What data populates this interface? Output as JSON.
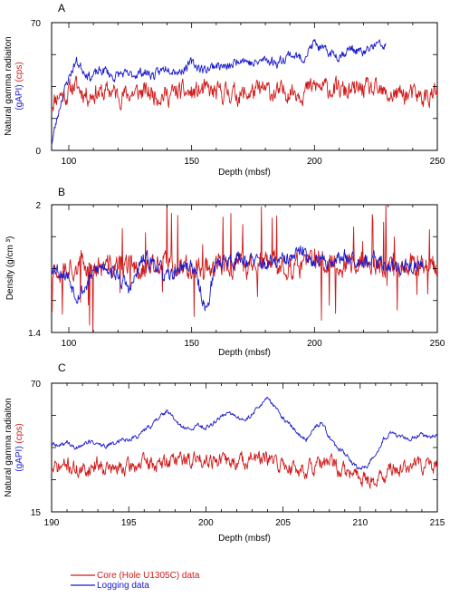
{
  "chart_data": [
    {
      "type": "line",
      "panel": "A",
      "xlabel": "Depth (mbsf)",
      "ylabel_parts": [
        {
          "text": "Natural gamma radiaiton",
          "color": "#000000"
        },
        {
          "text": "(gAPI)",
          "color": "#1a1acc"
        },
        {
          "text": "(cps)",
          "color": "#d01a1a"
        }
      ],
      "xlim": [
        93,
        250
      ],
      "ylim": [
        0,
        70
      ],
      "xticks": [
        "100",
        "150",
        "200",
        "250"
      ],
      "xtick_values": [
        100,
        150,
        200,
        250
      ],
      "yticks": [
        "0",
        "70"
      ],
      "ytick_values": [
        0,
        70
      ],
      "grid": false,
      "series": [
        {
          "color": "#d01a1a",
          "x": [
            93,
            96,
            99,
            102,
            105,
            108,
            111,
            114,
            117,
            120,
            125,
            130,
            135,
            140,
            145,
            150,
            155,
            160,
            165,
            170,
            175,
            180,
            185,
            190,
            195,
            200,
            205,
            210,
            215,
            220,
            225,
            230,
            235,
            240,
            245,
            250
          ],
          "y": [
            26,
            31,
            30,
            36,
            33,
            30,
            32,
            31,
            33,
            30,
            31,
            32,
            31,
            30,
            32,
            31,
            33,
            31,
            32,
            30,
            32,
            33,
            31,
            33,
            32,
            35,
            34,
            33,
            32,
            34,
            32,
            30,
            31,
            30,
            29,
            31
          ],
          "noise": 4.5,
          "seed": 11
        },
        {
          "color": "#1a1acc",
          "x": [
            93,
            95,
            97,
            100,
            103,
            106,
            109,
            112,
            115,
            118,
            121,
            125,
            130,
            135,
            140,
            145,
            150,
            155,
            160,
            165,
            170,
            175,
            180,
            185,
            190,
            195,
            200,
            203,
            205,
            210,
            215,
            220,
            225,
            229
          ],
          "y": [
            4,
            16,
            28,
            40,
            49,
            44,
            40,
            43,
            44,
            40,
            42,
            41,
            43,
            41,
            46,
            43,
            48,
            44,
            47,
            45,
            51,
            47,
            50,
            48,
            53,
            50,
            59,
            55,
            54,
            52,
            56,
            53,
            58,
            57
          ],
          "noise": 2.2,
          "seed": 23
        }
      ]
    },
    {
      "type": "line",
      "panel": "B",
      "xlabel": "Depth (mbsf)",
      "ylabel_parts": [
        {
          "text": "Density (g/cm ³)",
          "color": "#000000"
        }
      ],
      "xlim": [
        93,
        250
      ],
      "ylim": [
        1.4,
        2
      ],
      "xticks": [
        "100",
        "150",
        "200",
        "250"
      ],
      "xtick_values": [
        100,
        150,
        200,
        250
      ],
      "yticks": [
        "1.4",
        "2"
      ],
      "ytick_values": [
        1.4,
        2
      ],
      "grid": false,
      "series": [
        {
          "color": "#d01a1a",
          "x": [
            93,
            100,
            110,
            120,
            130,
            140,
            150,
            160,
            170,
            180,
            190,
            200,
            210,
            220,
            230,
            240,
            250
          ],
          "y": [
            1.7,
            1.72,
            1.7,
            1.71,
            1.7,
            1.72,
            1.71,
            1.72,
            1.71,
            1.72,
            1.71,
            1.73,
            1.72,
            1.72,
            1.71,
            1.72,
            1.72
          ],
          "noise": 0.045,
          "spikes": 0.15,
          "seed": 37
        },
        {
          "color": "#1a1acc",
          "x": [
            93,
            100,
            103,
            106,
            110,
            115,
            120,
            125,
            130,
            135,
            140,
            145,
            150,
            153,
            156,
            160,
            170,
            180,
            190,
            195,
            200,
            205,
            210,
            215,
            220,
            225,
            230,
            235,
            240,
            244
          ],
          "y": [
            1.72,
            1.66,
            1.58,
            1.6,
            1.68,
            1.72,
            1.66,
            1.6,
            1.74,
            1.73,
            1.65,
            1.7,
            1.72,
            1.62,
            1.5,
            1.73,
            1.75,
            1.72,
            1.74,
            1.78,
            1.74,
            1.73,
            1.75,
            1.76,
            1.74,
            1.73,
            1.72,
            1.71,
            1.71,
            1.7
          ],
          "noise": 0.03,
          "seed": 53
        }
      ]
    },
    {
      "type": "line",
      "panel": "C",
      "xlabel": "Depth (mbsf)",
      "ylabel_parts": [
        {
          "text": "Natural gamma radiaiton",
          "color": "#000000"
        },
        {
          "text": "(gAPI)",
          "color": "#1a1acc"
        },
        {
          "text": "(cps)",
          "color": "#d01a1a"
        }
      ],
      "xlim": [
        190,
        215
      ],
      "ylim": [
        15,
        70
      ],
      "xticks": [
        "190",
        "195",
        "200",
        "205",
        "210",
        "215"
      ],
      "xtick_values": [
        190,
        195,
        200,
        205,
        210,
        215
      ],
      "yticks": [
        "15",
        "70"
      ],
      "ytick_values": [
        15,
        70
      ],
      "grid": false,
      "series": [
        {
          "color": "#d01a1a",
          "x": [
            190,
            191,
            192,
            193,
            194,
            195,
            196,
            197,
            198,
            199,
            200,
            201,
            202,
            203,
            204,
            205,
            206,
            207,
            208,
            209,
            210,
            211,
            212,
            213,
            214,
            215
          ],
          "y": [
            33,
            35,
            32,
            36,
            33,
            34,
            36,
            35,
            38,
            37,
            38,
            37,
            36,
            38,
            37,
            35,
            33,
            34,
            36,
            32,
            30,
            28,
            33,
            34,
            35,
            34
          ],
          "noise": 2.8,
          "seed": 71
        },
        {
          "color": "#1a1acc",
          "x": [
            190,
            190.5,
            191,
            191.5,
            192,
            192.5,
            193,
            193.5,
            194,
            194.5,
            195,
            195.5,
            196,
            196.5,
            197,
            197.5,
            198,
            198.5,
            199,
            199.5,
            200,
            200.5,
            201,
            201.5,
            202,
            202.5,
            203,
            203.5,
            204,
            204.5,
            205,
            205.5,
            206,
            206.5,
            207,
            207.5,
            208,
            208.5,
            209,
            209.5,
            210,
            210.5,
            211,
            211.5,
            212,
            212.5,
            213,
            213.5,
            214,
            214.5,
            215
          ],
          "y": [
            44,
            43,
            45,
            42,
            44,
            45,
            44,
            43,
            44,
            46,
            46,
            47,
            50,
            52,
            56,
            58,
            54,
            51,
            50,
            52,
            51,
            53,
            56,
            58,
            55,
            54,
            57,
            61,
            63,
            60,
            55,
            52,
            48,
            46,
            51,
            53,
            47,
            42,
            40,
            36,
            33,
            35,
            40,
            46,
            49,
            47,
            46,
            47,
            48,
            47,
            48
          ],
          "noise": 0.8,
          "seed": 89
        }
      ]
    }
  ],
  "panels": [
    {
      "letter": "A"
    },
    {
      "letter": "B"
    },
    {
      "letter": "C"
    }
  ],
  "legend": {
    "entries": [
      {
        "label": "Core (Hole U1305C) data",
        "color": "#d01a1a"
      },
      {
        "label": "Logging data",
        "color": "#1a1acc"
      }
    ]
  }
}
